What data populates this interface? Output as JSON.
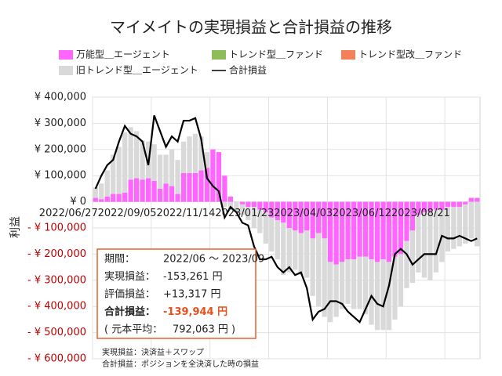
{
  "chart_data": {
    "type": "bar",
    "title": "マイメイトの実現損益と合計損益の推移",
    "y_label": "利益",
    "categories": [
      "2022/06/27",
      null,
      null,
      null,
      null,
      null,
      null,
      null,
      null,
      null,
      "2022/09/05",
      null,
      null,
      null,
      null,
      null,
      null,
      null,
      null,
      null,
      "2022/11/14",
      null,
      null,
      null,
      null,
      null,
      null,
      null,
      null,
      null,
      "2023/01/23",
      null,
      null,
      null,
      null,
      null,
      null,
      null,
      null,
      null,
      "2023/04/03",
      null,
      null,
      null,
      null,
      null,
      null,
      null,
      null,
      null,
      "2023/06/12",
      null,
      null,
      null,
      null,
      null,
      null,
      null,
      null,
      null,
      "2023/08/21",
      null,
      null,
      null,
      null,
      null
    ],
    "series": [
      {
        "name": "万能型＿エージェント",
        "color": "#ff66ff",
        "values": [
          15000,
          10000,
          20000,
          30000,
          30000,
          35000,
          85000,
          90000,
          85000,
          90000,
          80000,
          50000,
          70000,
          60000,
          30000,
          110000,
          110000,
          110000,
          120000,
          130000,
          200000,
          190000,
          100000,
          20000,
          0,
          -10000,
          -20000,
          -20000,
          -30000,
          -40000,
          -60000,
          -70000,
          -80000,
          -100000,
          -110000,
          -120000,
          -110000,
          -140000,
          -120000,
          -140000,
          -230000,
          -240000,
          -230000,
          -220000,
          -220000,
          -210000,
          -210000,
          -220000,
          -230000,
          -220000,
          -230000,
          -210000,
          -200000,
          -150000,
          -110000,
          -50000,
          -40000,
          -40000,
          -30000,
          -30000,
          -20000,
          -20000,
          -20000,
          -10000,
          15000,
          15000
        ]
      },
      {
        "name": "トレンド型＿ファンド",
        "color": "#8fbc5a",
        "values": [
          0,
          0,
          0,
          0,
          0,
          0,
          0,
          0,
          0,
          0,
          0,
          0,
          0,
          0,
          0,
          0,
          0,
          0,
          0,
          0,
          0,
          0,
          0,
          0,
          0,
          0,
          0,
          0,
          0,
          0,
          0,
          0,
          0,
          0,
          0,
          0,
          0,
          0,
          0,
          0,
          0,
          0,
          0,
          0,
          0,
          0,
          0,
          0,
          0,
          0,
          0,
          0,
          0,
          0,
          0,
          0,
          0,
          0,
          0,
          0,
          0,
          0,
          0,
          0,
          0,
          0
        ]
      },
      {
        "name": "トレンド型改＿ファンド",
        "color": "#f4805a",
        "values": [
          0,
          0,
          0,
          0,
          0,
          0,
          0,
          0,
          0,
          0,
          0,
          0,
          0,
          0,
          0,
          0,
          0,
          0,
          0,
          0,
          0,
          0,
          0,
          0,
          0,
          0,
          0,
          0,
          0,
          0,
          0,
          0,
          0,
          0,
          0,
          0,
          0,
          0,
          0,
          0,
          0,
          0,
          0,
          0,
          0,
          0,
          0,
          0,
          0,
          0,
          0,
          0,
          0,
          0,
          0,
          0,
          0,
          0,
          0,
          0,
          0,
          0,
          0,
          0,
          0,
          0
        ]
      },
      {
        "name": "旧トレンド型＿エージェント",
        "color": "#d9d9d9",
        "values": [
          40000,
          60000,
          100000,
          150000,
          180000,
          230000,
          200000,
          180000,
          150000,
          140000,
          140000,
          130000,
          110000,
          140000,
          130000,
          120000,
          140000,
          150000,
          130000,
          60000,
          0,
          0,
          -20000,
          -30000,
          -40000,
          -40000,
          -50000,
          -80000,
          -90000,
          -120000,
          -130000,
          -150000,
          -200000,
          -170000,
          -150000,
          -160000,
          -180000,
          -220000,
          -280000,
          -300000,
          -230000,
          -200000,
          -180000,
          -170000,
          -190000,
          -200000,
          -220000,
          -250000,
          -260000,
          -270000,
          -260000,
          -240000,
          -200000,
          -180000,
          -200000,
          -220000,
          -250000,
          -260000,
          -240000,
          -200000,
          -170000,
          -160000,
          -150000,
          -150000,
          -140000,
          -170000
        ]
      },
      {
        "name": "合計損益",
        "type": "line",
        "color": "#000000",
        "values": [
          50000,
          100000,
          140000,
          160000,
          230000,
          290000,
          260000,
          250000,
          230000,
          140000,
          330000,
          270000,
          210000,
          250000,
          230000,
          310000,
          310000,
          320000,
          240000,
          90000,
          60000,
          40000,
          -60000,
          -20000,
          -40000,
          -80000,
          -90000,
          -170000,
          -220000,
          -220000,
          -210000,
          -250000,
          -270000,
          -250000,
          -280000,
          -270000,
          -330000,
          -450000,
          -420000,
          -410000,
          -380000,
          -380000,
          -390000,
          -420000,
          -440000,
          -460000,
          -410000,
          -360000,
          -390000,
          -400000,
          -320000,
          -200000,
          -180000,
          -200000,
          -240000,
          -220000,
          -200000,
          -200000,
          -200000,
          -130000,
          -140000,
          -140000,
          -130000,
          -140000,
          -150000,
          -140000
        ]
      }
    ],
    "ylim": [
      -600000,
      400000
    ],
    "yticks": [
      {
        "value": 400000,
        "label": "¥ 400,000"
      },
      {
        "value": 300000,
        "label": "¥ 300,000"
      },
      {
        "value": 200000,
        "label": "¥ 200,000"
      },
      {
        "value": 100000,
        "label": "¥ 100,000"
      },
      {
        "value": 0,
        "label": "¥ 0"
      },
      {
        "value": -100000,
        "label": "- ¥ 100,000"
      },
      {
        "value": -200000,
        "label": "- ¥ 200,000"
      },
      {
        "value": -300000,
        "label": "- ¥ 300,000"
      },
      {
        "value": -400000,
        "label": "- ¥ 400,000"
      },
      {
        "value": -500000,
        "label": "- ¥ 500,000"
      },
      {
        "value": -600000,
        "label": "- ¥ 600,000"
      }
    ],
    "negative_tick_color": "#c00000",
    "grid": true,
    "summary": [
      {
        "label": "期間：",
        "value": "2022/06 〜 2023/09"
      },
      {
        "label": "実現損益：",
        "value": "-153,261 円"
      },
      {
        "label": "評価損益：",
        "value": "+13,317 円"
      },
      {
        "label": "合計損益：",
        "value": "-139,944 円"
      },
      {
        "label": "( 元本平均：",
        "value": "792,063 円 )"
      }
    ],
    "notes": [
      "実現損益：決済益＋スワップ",
      "合計損益：ポジションを全決済した時の損益"
    ]
  }
}
